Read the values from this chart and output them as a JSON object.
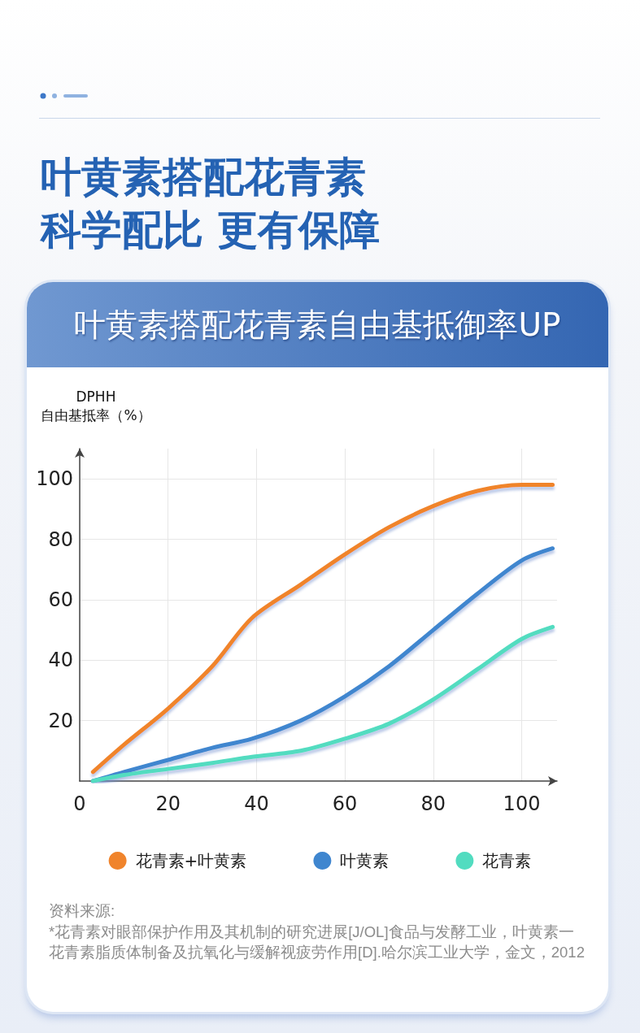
{
  "chart_data": {
    "type": "line",
    "title": "叶黄素搭配花青素科学配比 更有保障",
    "subtitle": "叶黄素搭配花青素自由基抵御率UP",
    "ylabel": "DPHH\n自由基抵率（%）",
    "x": [
      3,
      10,
      20,
      30,
      39,
      50,
      60,
      70,
      80,
      90,
      100,
      107
    ],
    "series": [
      {
        "name": "花青素+叶黄素",
        "color": "#f0842c",
        "values": [
          3,
          12,
          24,
          38,
          54,
          65,
          75,
          84,
          91,
          96,
          98,
          98
        ]
      },
      {
        "name": "叶黄素",
        "color": "#3f86cf",
        "values": [
          0,
          3,
          7,
          11,
          14,
          20,
          28,
          38,
          50,
          62,
          73,
          77
        ]
      },
      {
        "name": "花青素",
        "color": "#52dcc0",
        "values": [
          0,
          2,
          4,
          6,
          8,
          10,
          14,
          19,
          27,
          37,
          47,
          51
        ]
      }
    ],
    "xlim": [
      0,
      108
    ],
    "xticks": [
      0,
      20,
      40,
      60,
      80,
      100
    ],
    "ylim": [
      0,
      110
    ],
    "yticks": [
      20,
      40,
      60,
      80,
      100
    ],
    "grid": true,
    "legend": "bottom",
    "marker": "none",
    "annotations": [
      "资料来源:",
      "*花青素对眼部保护作用及其机制的研究进展[J/OL]食品与发酵工业，叶黄素一花青素脂质体制备及抗氧化与缓解视疲劳作用[D].哈尔滨工业大学，金文，2012"
    ]
  }
}
